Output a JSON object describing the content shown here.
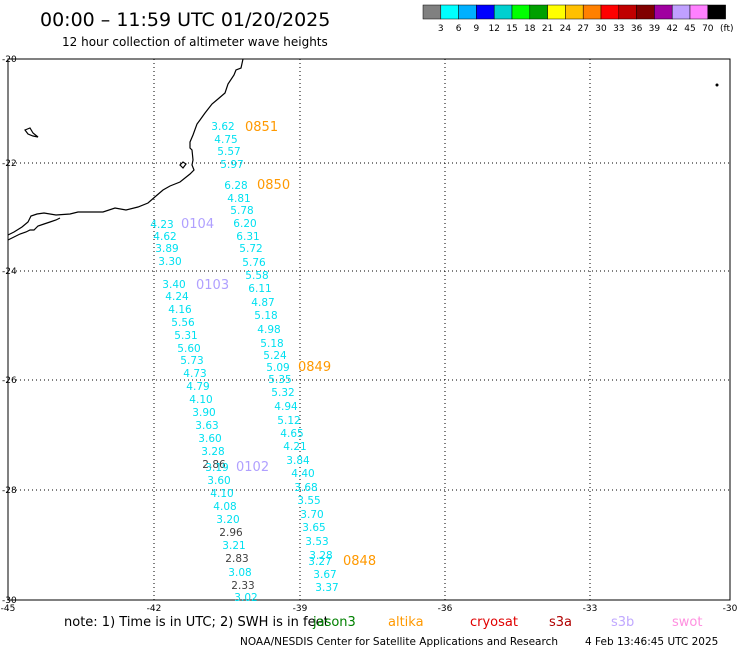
{
  "title": "00:00 – 11:59 UTC 01/20/2025",
  "subtitle": "12 hour collection of altimeter wave heights",
  "legend": {
    "unit": "(ft)",
    "colors": [
      "#808080",
      "#00ffff",
      "#00b0ff",
      "#0000ff",
      "#00d0d0",
      "#00ff00",
      "#00a000",
      "#ffff00",
      "#ffc000",
      "#ff8000",
      "#ff0000",
      "#c00000",
      "#800000",
      "#a000a0",
      "#c0a0ff",
      "#ff80ff",
      "#000000"
    ],
    "labels": [
      "3",
      "6",
      "9",
      "12",
      "15",
      "18",
      "21",
      "24",
      "27",
      "30",
      "33",
      "36",
      "39",
      "42",
      "45",
      "70"
    ]
  },
  "axes": {
    "lon_labels": [
      "-45",
      "-42",
      "-39",
      "-36",
      "-33",
      "-30"
    ],
    "lat_labels": [
      "-20",
      "-22",
      "-24",
      "-26",
      "-28",
      "-30"
    ]
  },
  "colors": {
    "cyan": "#00e0f0",
    "gray": "#404040",
    "orange": "#ff9900",
    "lavender": "#b0a0ff"
  },
  "track_labels": [
    {
      "text": "0851",
      "color": "orange"
    },
    {
      "text": "0850",
      "color": "orange"
    },
    {
      "text": "0104",
      "color": "lavender"
    },
    {
      "text": "0103",
      "color": "lavender"
    },
    {
      "text": "0849",
      "color": "orange"
    },
    {
      "text": "0102",
      "color": "lavender"
    },
    {
      "text": "0848",
      "color": "orange"
    }
  ],
  "wave_values": [
    {
      "v": "3.62",
      "c": "cyan"
    },
    {
      "v": "4.75",
      "c": "cyan"
    },
    {
      "v": "5.57",
      "c": "cyan"
    },
    {
      "v": "5.97",
      "c": "cyan"
    },
    {
      "v": "6.28",
      "c": "cyan"
    },
    {
      "v": "4.81",
      "c": "cyan"
    },
    {
      "v": "5.78",
      "c": "cyan"
    },
    {
      "v": "6.20",
      "c": "cyan"
    },
    {
      "v": "6.31",
      "c": "cyan"
    },
    {
      "v": "5.72",
      "c": "cyan"
    },
    {
      "v": "5.76",
      "c": "cyan"
    },
    {
      "v": "5.58",
      "c": "cyan"
    },
    {
      "v": "6.11",
      "c": "cyan"
    },
    {
      "v": "4.87",
      "c": "cyan"
    },
    {
      "v": "5.18",
      "c": "cyan"
    },
    {
      "v": "4.98",
      "c": "cyan"
    },
    {
      "v": "5.18",
      "c": "cyan"
    },
    {
      "v": "5.24",
      "c": "cyan"
    },
    {
      "v": "5.09",
      "c": "cyan"
    },
    {
      "v": "5.35",
      "c": "cyan"
    },
    {
      "v": "5.32",
      "c": "cyan"
    },
    {
      "v": "4.94",
      "c": "cyan"
    },
    {
      "v": "5.12",
      "c": "cyan"
    },
    {
      "v": "4.65",
      "c": "cyan"
    },
    {
      "v": "4.21",
      "c": "cyan"
    },
    {
      "v": "3.84",
      "c": "cyan"
    },
    {
      "v": "4.40",
      "c": "cyan"
    },
    {
      "v": "3.68",
      "c": "cyan"
    },
    {
      "v": "3.55",
      "c": "cyan"
    },
    {
      "v": "3.70",
      "c": "cyan"
    },
    {
      "v": "3.65",
      "c": "cyan"
    },
    {
      "v": "3.53",
      "c": "cyan"
    },
    {
      "v": "3.28",
      "c": "cyan"
    },
    {
      "v": "3.27",
      "c": "cyan"
    },
    {
      "v": "3.67",
      "c": "cyan"
    },
    {
      "v": "3.37",
      "c": "cyan"
    },
    {
      "v": "4.23",
      "c": "cyan"
    },
    {
      "v": "4.62",
      "c": "cyan"
    },
    {
      "v": "3.89",
      "c": "cyan"
    },
    {
      "v": "3.30",
      "c": "cyan"
    },
    {
      "v": "3.40",
      "c": "cyan"
    },
    {
      "v": "4.24",
      "c": "cyan"
    },
    {
      "v": "4.16",
      "c": "cyan"
    },
    {
      "v": "5.56",
      "c": "cyan"
    },
    {
      "v": "5.31",
      "c": "cyan"
    },
    {
      "v": "5.60",
      "c": "cyan"
    },
    {
      "v": "5.73",
      "c": "cyan"
    },
    {
      "v": "4.73",
      "c": "cyan"
    },
    {
      "v": "4.79",
      "c": "cyan"
    },
    {
      "v": "4.10",
      "c": "cyan"
    },
    {
      "v": "3.90",
      "c": "cyan"
    },
    {
      "v": "3.63",
      "c": "cyan"
    },
    {
      "v": "3.60",
      "c": "cyan"
    },
    {
      "v": "3.28",
      "c": "cyan"
    },
    {
      "v": "2.86",
      "c": "gray"
    },
    {
      "v": "3.19",
      "c": "cyan"
    },
    {
      "v": "3.60",
      "c": "cyan"
    },
    {
      "v": "4.10",
      "c": "cyan"
    },
    {
      "v": "4.08",
      "c": "cyan"
    },
    {
      "v": "3.20",
      "c": "cyan"
    },
    {
      "v": "2.96",
      "c": "gray"
    },
    {
      "v": "3.21",
      "c": "cyan"
    },
    {
      "v": "2.83",
      "c": "gray"
    },
    {
      "v": "3.08",
      "c": "cyan"
    },
    {
      "v": "2.33",
      "c": "gray"
    },
    {
      "v": "3.02",
      "c": "cyan"
    }
  ],
  "footer": {
    "note": "note: 1) Time is in UTC; 2) SWH is in feet",
    "sources": [
      {
        "name": "jason3",
        "color": "#008000"
      },
      {
        "name": "altika",
        "color": "#ff9900"
      },
      {
        "name": "cryosat",
        "color": "#e00000"
      },
      {
        "name": "s3a",
        "color": "#b00000"
      },
      {
        "name": "s3b",
        "color": "#c0a8ff"
      },
      {
        "name": "swot",
        "color": "#ff90e0"
      }
    ],
    "credit": "NOAA/NESDIS Center for Satellite Applications and Research",
    "timestamp": "4 Feb 13:46:45 UTC 2025"
  }
}
